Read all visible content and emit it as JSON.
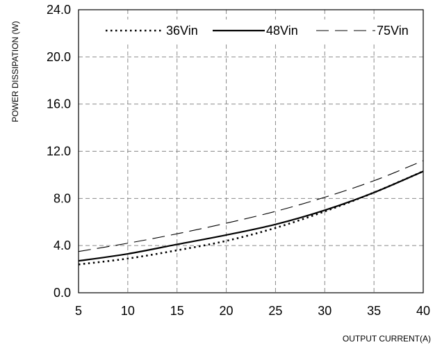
{
  "chart_data": {
    "type": "line",
    "xlabel": "OUTPUT CURRENT(A)",
    "ylabel": "POWER DISSIPATION (W)",
    "xlim": [
      5,
      40
    ],
    "ylim": [
      0,
      24
    ],
    "x_ticks": [
      5,
      10,
      15,
      20,
      25,
      30,
      35,
      40
    ],
    "y_ticks": [
      0,
      4,
      8,
      12,
      16,
      20,
      24
    ],
    "x_tick_labels": [
      "5",
      "10",
      "15",
      "20",
      "25",
      "30",
      "35",
      "40"
    ],
    "y_tick_labels": [
      "0.0",
      "4.0",
      "8.0",
      "12.0",
      "16.0",
      "20.0",
      "24.0"
    ],
    "grid": true,
    "legend_position": "top",
    "x": [
      5,
      10,
      15,
      20,
      25,
      30,
      35,
      40
    ],
    "series": [
      {
        "name": "36Vin",
        "style": "dotted",
        "values": [
          2.4,
          2.9,
          3.6,
          4.4,
          5.5,
          6.9,
          8.5,
          10.3
        ]
      },
      {
        "name": "48Vin",
        "style": "solid",
        "values": [
          2.7,
          3.3,
          4.1,
          4.9,
          5.8,
          7.0,
          8.5,
          10.3
        ]
      },
      {
        "name": "75Vin",
        "style": "dashed",
        "values": [
          3.5,
          4.2,
          5.0,
          5.9,
          6.9,
          8.1,
          9.5,
          11.2
        ]
      }
    ]
  }
}
